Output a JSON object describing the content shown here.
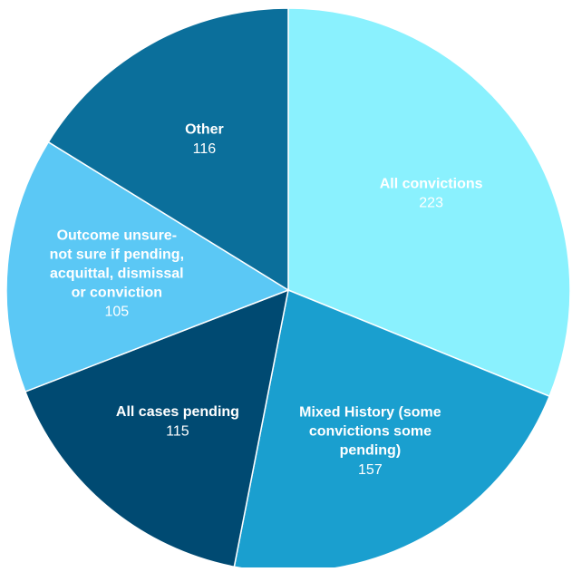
{
  "chart_data": {
    "type": "pie",
    "categories": [
      "All convictions",
      "Mixed History (some convictions some pending)",
      "All cases pending",
      "Outcome unsure- not sure if pending, acquittal, dismissal or conviction",
      "Other"
    ],
    "values": [
      223,
      157,
      115,
      105,
      116
    ],
    "colors": [
      "#8af1fe",
      "#1a9fcf",
      "#004a72",
      "#5bc8f5",
      "#0b6f9b"
    ]
  }
}
